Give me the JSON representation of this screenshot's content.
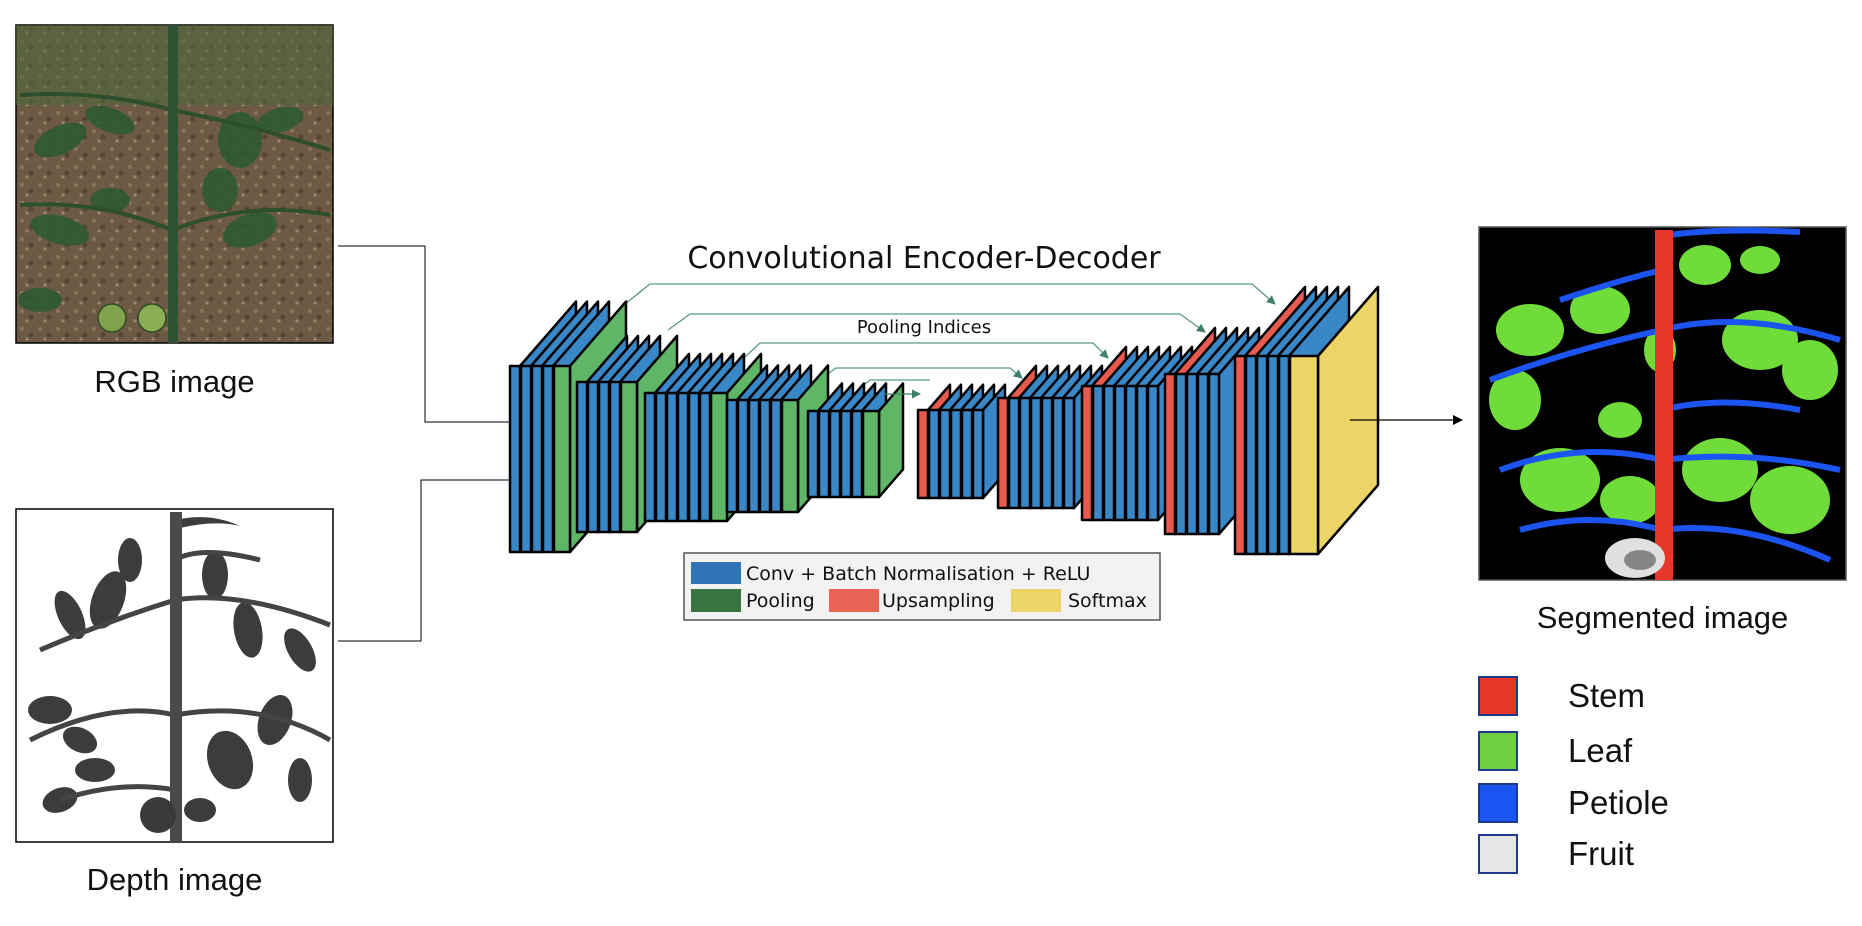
{
  "inputs": {
    "rgb_caption": "RGB image",
    "depth_caption": "Depth image"
  },
  "network": {
    "title": "Convolutional Encoder-Decoder",
    "skip_label": "Pooling Indices",
    "legend": {
      "conv": "Conv + Batch Normalisation + ReLU",
      "pool": "Pooling",
      "upsample": "Upsampling",
      "softmax": "Softmax"
    },
    "colors": {
      "conv": "#3a87c8",
      "pool": "#5fb667",
      "upsample": "#e8594e",
      "softmax": "#ecd466",
      "legend_conv": "#2f74b5",
      "legend_pool": "#3a7540",
      "legend_upsample": "#ea6456",
      "legend_softmax": "#ecd466",
      "skip_line": "#5a9a86"
    }
  },
  "output": {
    "caption": "Segmented image",
    "classes": [
      {
        "label": "Stem",
        "color": "#e8362a"
      },
      {
        "label": "Leaf",
        "color": "#6fcf43"
      },
      {
        "label": "Petiole",
        "color": "#1b54f0"
      },
      {
        "label": "Fruit",
        "color": "#e6e6e6"
      }
    ]
  }
}
